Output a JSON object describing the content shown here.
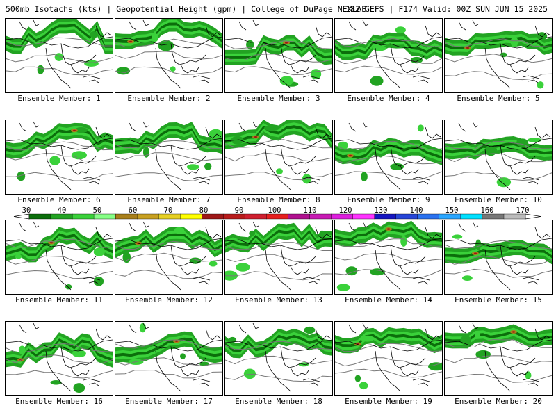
{
  "header": {
    "left": "500mb Isotachs (kts) | Geopotential Height (gpm) | College of DuPage NEXLAB",
    "right": "18Z GEFS | F174 Valid: 00Z SUN JUN 15 2025"
  },
  "colors": {
    "bins": [
      "#0b6e0b",
      "#22a322",
      "#3ad13a",
      "#86ff86",
      "#a87f1a",
      "#c8a020",
      "#e6d023",
      "#ffff00",
      "#9e1717",
      "#b81b1b",
      "#cf1f2f",
      "#e61e1e",
      "#b0108f",
      "#c81ab4",
      "#de1ede",
      "#ff33ff",
      "#1515c0",
      "#2645d8",
      "#2a72f0",
      "#29a6ff",
      "#00e0ff",
      "#777777",
      "#bbbbbb"
    ],
    "coastline": "#000000",
    "height_contour": "#777777"
  },
  "colorbar": {
    "labels": [
      "30",
      "40",
      "50",
      "60",
      "70",
      "80",
      "90",
      "100",
      "110",
      "120",
      "130",
      "140",
      "150",
      "160",
      "170"
    ]
  },
  "members": [
    {
      "label": "Ensemble Member: 1"
    },
    {
      "label": "Ensemble Member: 2"
    },
    {
      "label": "Ensemble Member: 3"
    },
    {
      "label": "Ensemble Member: 4"
    },
    {
      "label": "Ensemble Member: 5"
    },
    {
      "label": "Ensemble Member: 6"
    },
    {
      "label": "Ensemble Member: 7"
    },
    {
      "label": "Ensemble Member: 8"
    },
    {
      "label": "Ensemble Member: 9"
    },
    {
      "label": "Ensemble Member: 10"
    },
    {
      "label": "Ensemble Member: 11"
    },
    {
      "label": "Ensemble Member: 12"
    },
    {
      "label": "Ensemble Member: 13"
    },
    {
      "label": "Ensemble Member: 14"
    },
    {
      "label": "Ensemble Member: 15"
    },
    {
      "label": "Ensemble Member: 16"
    },
    {
      "label": "Ensemble Member: 17"
    },
    {
      "label": "Ensemble Member: 18"
    },
    {
      "label": "Ensemble Member: 19"
    },
    {
      "label": "Ensemble Member: 20"
    }
  ]
}
